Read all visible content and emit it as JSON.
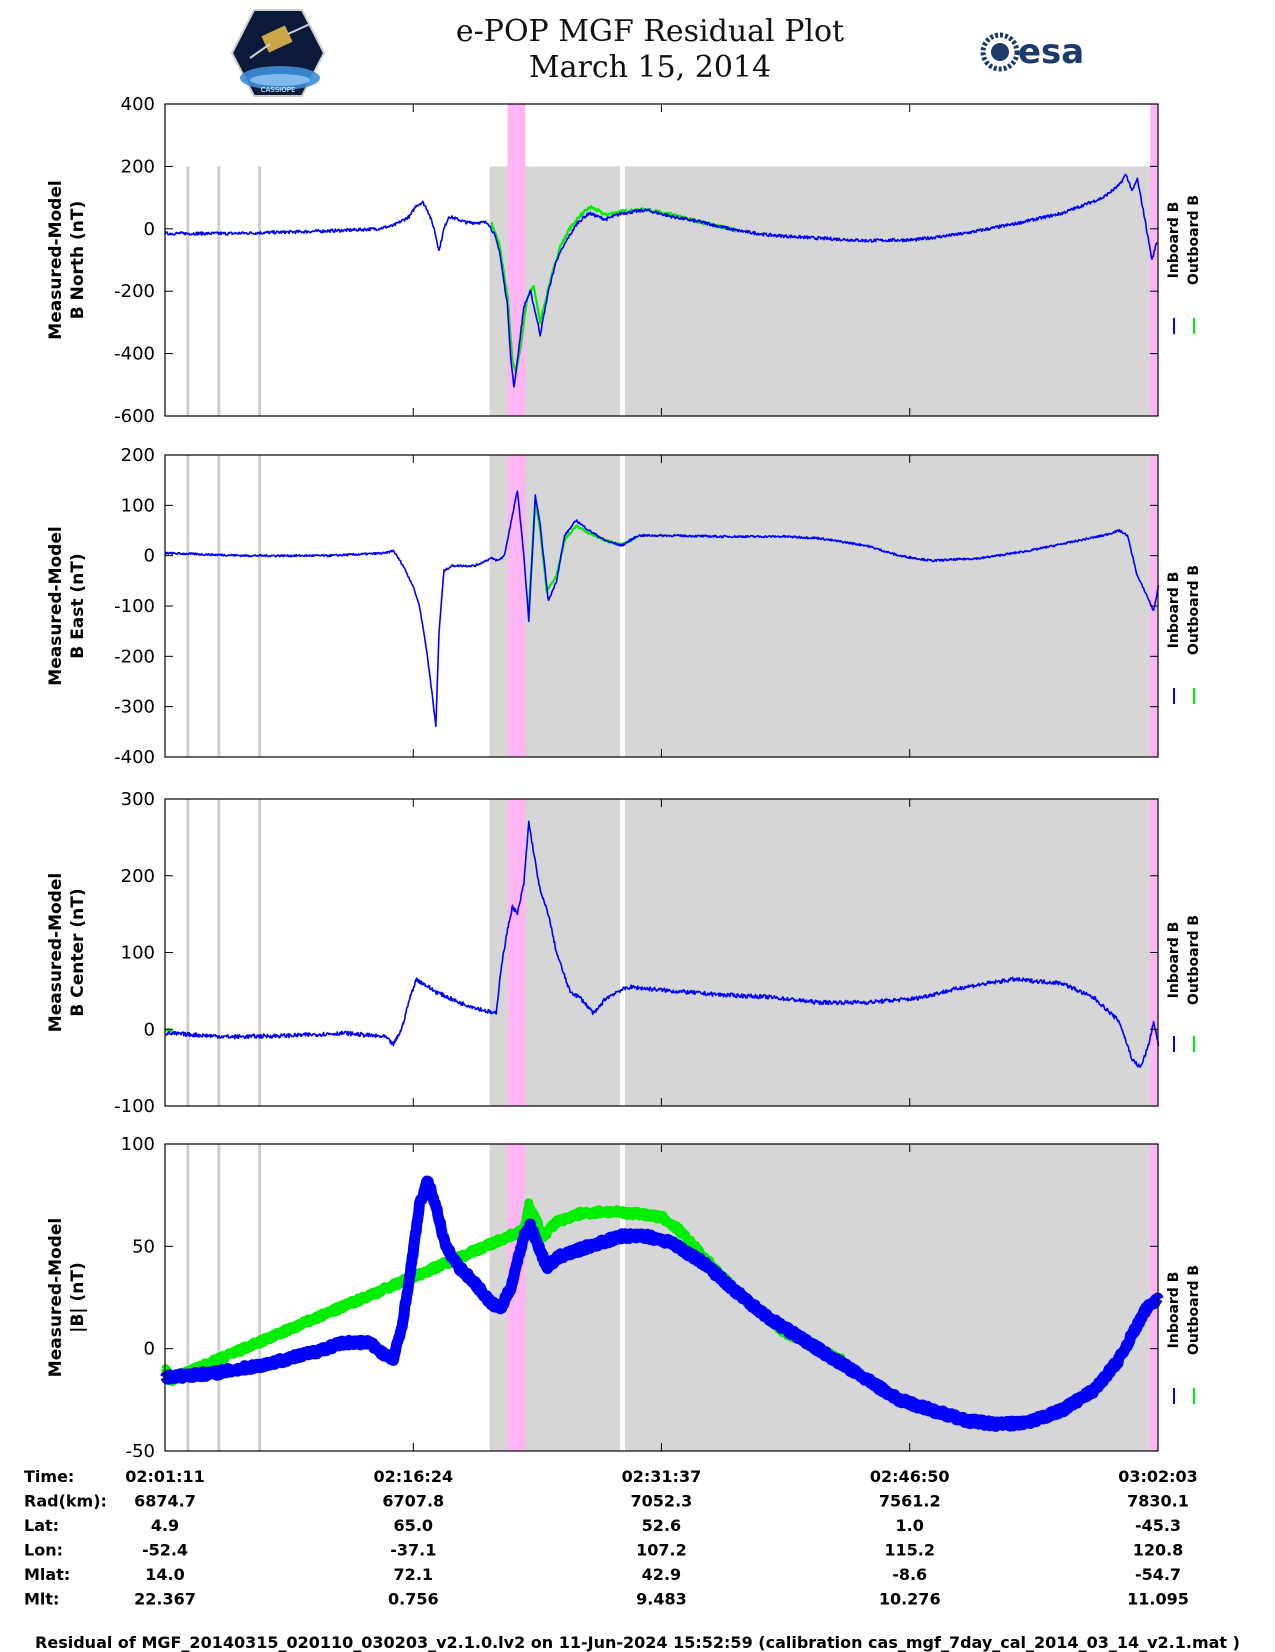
{
  "header": {
    "title_line1": "e-POP MGF Residual Plot",
    "title_line2": "March 15, 2014",
    "logo_left_text": "CASSIOPE",
    "logo_right_text": "esa"
  },
  "colors": {
    "inboard": "#0000ff",
    "outboard": "#00ee00",
    "shade_gray": "#d6d6d6",
    "shade_pink": "#ffb6f5",
    "gap_white": "#ffffff",
    "marker_gray": "#cfcfcf"
  },
  "chart_data": {
    "type": "line",
    "x_unit": "time",
    "time_range": [
      "02:01:11",
      "03:02:03"
    ],
    "x_tick_labels": [
      "02:01:11",
      "02:16:24",
      "02:31:37",
      "02:46:50",
      "03:02:03"
    ],
    "x_tick_positions_min": [
      0,
      15.22,
      30.43,
      45.65,
      60.87
    ],
    "legend": [
      "Inboard B",
      "Outboard B"
    ],
    "legend_placement": "right",
    "shading_min": {
      "gray": [
        19.9,
        60.9
      ],
      "pink": [
        21.0,
        22.1
      ],
      "pink_end": [
        60.4,
        60.9
      ],
      "white_gap": [
        27.9,
        28.2
      ],
      "marker_lines": [
        1.4,
        3.3,
        5.8
      ]
    },
    "panels": [
      {
        "ylabel_line1": "Measured-Model",
        "ylabel_line2": "B North (nT)",
        "ylim": [
          -600,
          400
        ],
        "yticks": [
          -600,
          -400,
          -200,
          0,
          200,
          400
        ],
        "shade_top": 200,
        "inboard": [
          [
            0,
            -15
          ],
          [
            4,
            -15
          ],
          [
            8,
            -10
          ],
          [
            11,
            -5
          ],
          [
            13,
            0
          ],
          [
            14,
            10
          ],
          [
            15,
            40
          ],
          [
            15.4,
            75
          ],
          [
            15.8,
            85
          ],
          [
            16.1,
            60
          ],
          [
            16.5,
            0
          ],
          [
            16.8,
            -70
          ],
          [
            17.1,
            0
          ],
          [
            17.4,
            40
          ],
          [
            18.5,
            20
          ],
          [
            19.8,
            20
          ],
          [
            20.2,
            -20
          ],
          [
            20.5,
            -70
          ],
          [
            21.0,
            -250
          ],
          [
            21.2,
            -420
          ],
          [
            21.4,
            -510
          ],
          [
            21.6,
            -420
          ],
          [
            22.0,
            -250
          ],
          [
            22.4,
            -200
          ],
          [
            22.8,
            -290
          ],
          [
            23.0,
            -340
          ],
          [
            23.5,
            -200
          ],
          [
            24.0,
            -100
          ],
          [
            24.7,
            -30
          ],
          [
            25.3,
            20
          ],
          [
            26,
            50
          ],
          [
            27,
            30
          ],
          [
            28,
            50
          ],
          [
            29.5,
            60
          ],
          [
            31,
            40
          ],
          [
            33,
            20
          ],
          [
            35,
            -5
          ],
          [
            37,
            -20
          ],
          [
            40,
            -30
          ],
          [
            43,
            -38
          ],
          [
            46,
            -35
          ],
          [
            49,
            -15
          ],
          [
            52,
            15
          ],
          [
            55,
            50
          ],
          [
            57.5,
            100
          ],
          [
            58.5,
            140
          ],
          [
            58.9,
            175
          ],
          [
            59.3,
            120
          ],
          [
            59.6,
            160
          ],
          [
            60.0,
            50
          ],
          [
            60.5,
            -100
          ],
          [
            60.8,
            -40
          ]
        ],
        "outboard": [
          [
            20.0,
            20
          ],
          [
            20.5,
            -50
          ],
          [
            21.0,
            -220
          ],
          [
            21.3,
            -420
          ],
          [
            21.5,
            -460
          ],
          [
            21.8,
            -380
          ],
          [
            22.2,
            -220
          ],
          [
            22.6,
            -185
          ],
          [
            23.0,
            -300
          ],
          [
            23.6,
            -170
          ],
          [
            24.2,
            -60
          ],
          [
            24.8,
            0
          ],
          [
            25.4,
            40
          ],
          [
            26.1,
            70
          ],
          [
            27,
            45
          ],
          [
            28,
            55
          ],
          [
            29.5,
            62
          ],
          [
            31,
            45
          ],
          [
            33,
            20
          ],
          [
            35,
            -5
          ]
        ]
      },
      {
        "ylabel_line1": "Measured-Model",
        "ylabel_line2": "B East (nT)",
        "ylim": [
          -400,
          200
        ],
        "yticks": [
          -400,
          -300,
          -200,
          -100,
          0,
          100,
          200
        ],
        "shade_top": 200,
        "inboard": [
          [
            0,
            5
          ],
          [
            5,
            0
          ],
          [
            10,
            0
          ],
          [
            13.5,
            5
          ],
          [
            14,
            10
          ],
          [
            14.6,
            -20
          ],
          [
            15.2,
            -60
          ],
          [
            15.6,
            -100
          ],
          [
            16.0,
            -180
          ],
          [
            16.4,
            -280
          ],
          [
            16.6,
            -340
          ],
          [
            16.8,
            -150
          ],
          [
            17.1,
            -30
          ],
          [
            17.6,
            -20
          ],
          [
            19,
            -20
          ],
          [
            20,
            -5
          ],
          [
            20.4,
            -10
          ],
          [
            20.8,
            0
          ],
          [
            21.3,
            80
          ],
          [
            21.6,
            130
          ],
          [
            22.0,
            0
          ],
          [
            22.3,
            -130
          ],
          [
            22.7,
            120
          ],
          [
            23.0,
            60
          ],
          [
            23.5,
            -90
          ],
          [
            24,
            -50
          ],
          [
            24.5,
            40
          ],
          [
            25.2,
            70
          ],
          [
            26,
            50
          ],
          [
            27,
            30
          ],
          [
            28,
            20
          ],
          [
            29,
            40
          ],
          [
            31,
            40
          ],
          [
            34,
            38
          ],
          [
            38,
            38
          ],
          [
            40,
            35
          ],
          [
            43,
            20
          ],
          [
            45,
            0
          ],
          [
            47,
            -10
          ],
          [
            50,
            -5
          ],
          [
            53,
            10
          ],
          [
            56,
            30
          ],
          [
            57.5,
            40
          ],
          [
            58.5,
            50
          ],
          [
            59.0,
            40
          ],
          [
            59.6,
            -40
          ],
          [
            60.2,
            -80
          ],
          [
            60.6,
            -110
          ],
          [
            60.9,
            -60
          ]
        ],
        "outboard": [
          [
            22.3,
            -110
          ],
          [
            22.7,
            110
          ],
          [
            23.0,
            50
          ],
          [
            23.4,
            -70
          ],
          [
            24,
            -40
          ],
          [
            24.5,
            30
          ],
          [
            25.2,
            60
          ],
          [
            26,
            45
          ],
          [
            27,
            30
          ],
          [
            28,
            22
          ],
          [
            29,
            38
          ]
        ]
      },
      {
        "ylabel_line1": "Measured-Model",
        "ylabel_line2": "B Center (nT)",
        "ylim": [
          -100,
          300
        ],
        "yticks": [
          -100,
          0,
          100,
          200,
          300
        ],
        "shade_top": 300,
        "inboard": [
          [
            0,
            -5
          ],
          [
            4,
            -10
          ],
          [
            8,
            -8
          ],
          [
            11,
            -5
          ],
          [
            13.5,
            -10
          ],
          [
            14.0,
            -20
          ],
          [
            14.5,
            0
          ],
          [
            15,
            40
          ],
          [
            15.4,
            65
          ],
          [
            15.8,
            60
          ],
          [
            16.5,
            50
          ],
          [
            18,
            35
          ],
          [
            19.5,
            25
          ],
          [
            20.3,
            20
          ],
          [
            20.6,
            80
          ],
          [
            21.0,
            130
          ],
          [
            21.3,
            160
          ],
          [
            21.6,
            150
          ],
          [
            22.0,
            190
          ],
          [
            22.3,
            270
          ],
          [
            22.6,
            230
          ],
          [
            23.0,
            180
          ],
          [
            23.5,
            150
          ],
          [
            24,
            100
          ],
          [
            24.8,
            50
          ],
          [
            25.5,
            40
          ],
          [
            26.3,
            20
          ],
          [
            27,
            40
          ],
          [
            27.8,
            50
          ],
          [
            28.5,
            55
          ],
          [
            31,
            50
          ],
          [
            34,
            45
          ],
          [
            37,
            42
          ],
          [
            40,
            35
          ],
          [
            43,
            35
          ],
          [
            46,
            40
          ],
          [
            49,
            55
          ],
          [
            52,
            65
          ],
          [
            55,
            60
          ],
          [
            57,
            40
          ],
          [
            58.5,
            10
          ],
          [
            59.3,
            -40
          ],
          [
            59.8,
            -50
          ],
          [
            60.3,
            -20
          ],
          [
            60.6,
            10
          ],
          [
            60.9,
            -20
          ]
        ],
        "outboard": [
          [
            0,
            0
          ],
          [
            0.6,
            -5
          ]
        ]
      },
      {
        "ylabel_line1": "Measured-Model",
        "ylabel_line2": "|B| (nT)",
        "ylim": [
          -50,
          100
        ],
        "yticks": [
          -50,
          0,
          50,
          100
        ],
        "shade_top": 100,
        "inboard": [
          [
            0,
            -14
          ],
          [
            3,
            -12
          ],
          [
            6,
            -8
          ],
          [
            9,
            -2
          ],
          [
            11,
            3
          ],
          [
            12.5,
            3
          ],
          [
            13.5,
            -3
          ],
          [
            14,
            -5
          ],
          [
            14.5,
            10
          ],
          [
            15,
            35
          ],
          [
            15.6,
            70
          ],
          [
            16.1,
            82
          ],
          [
            16.6,
            70
          ],
          [
            17.2,
            50
          ],
          [
            18,
            40
          ],
          [
            19,
            32
          ],
          [
            20,
            22
          ],
          [
            20.6,
            20
          ],
          [
            21.2,
            30
          ],
          [
            22.0,
            55
          ],
          [
            22.4,
            60
          ],
          [
            22.9,
            50
          ],
          [
            23.4,
            40
          ],
          [
            24.2,
            45
          ],
          [
            26,
            50
          ],
          [
            28,
            55
          ],
          [
            29.5,
            55
          ],
          [
            31,
            52
          ],
          [
            33,
            42
          ],
          [
            35,
            28
          ],
          [
            37,
            15
          ],
          [
            39,
            5
          ],
          [
            41,
            -5
          ],
          [
            43,
            -15
          ],
          [
            45,
            -25
          ],
          [
            47,
            -30
          ],
          [
            49,
            -35
          ],
          [
            51,
            -37
          ],
          [
            53,
            -36
          ],
          [
            55,
            -30
          ],
          [
            57,
            -20
          ],
          [
            58.5,
            -5
          ],
          [
            59.5,
            10
          ],
          [
            60.2,
            20
          ],
          [
            60.9,
            25
          ]
        ],
        "outboard": [
          [
            0,
            -10
          ],
          [
            0.4,
            -15
          ],
          [
            22.0,
            58
          ],
          [
            22.3,
            70
          ],
          [
            22.8,
            62
          ],
          [
            23.2,
            55
          ],
          [
            24.0,
            62
          ],
          [
            25.5,
            66
          ],
          [
            27,
            67
          ],
          [
            29,
            66
          ],
          [
            30.5,
            64
          ],
          [
            31.5,
            58
          ],
          [
            35,
            28
          ],
          [
            38,
            8
          ],
          [
            41,
            -4
          ],
          [
            41.5,
            -6
          ]
        ]
      }
    ],
    "info_table": {
      "row_labels": [
        "Time:",
        "Rad(km):",
        "Lat:",
        "Lon:",
        "Mlat:",
        "Mlt:"
      ],
      "columns": [
        [
          "02:01:11",
          "6874.7",
          "4.9",
          "-52.4",
          "14.0",
          "22.367"
        ],
        [
          "02:16:24",
          "6707.8",
          "65.0",
          "-37.1",
          "72.1",
          "0.756"
        ],
        [
          "02:31:37",
          "7052.3",
          "52.6",
          "107.2",
          "42.9",
          "9.483"
        ],
        [
          "02:46:50",
          "7561.2",
          "1.0",
          "115.2",
          "-8.6",
          "10.276"
        ],
        [
          "03:02:03",
          "7830.1",
          "-45.3",
          "120.8",
          "-54.7",
          "11.095"
        ]
      ]
    }
  },
  "footer": {
    "caption": "Residual of MGF_20140315_020110_030203_v2.1.0.lv2 on 11-Jun-2024 15:52:59 (calibration cas_mgf_7day_cal_2014_03_14_v2.1.mat )"
  }
}
